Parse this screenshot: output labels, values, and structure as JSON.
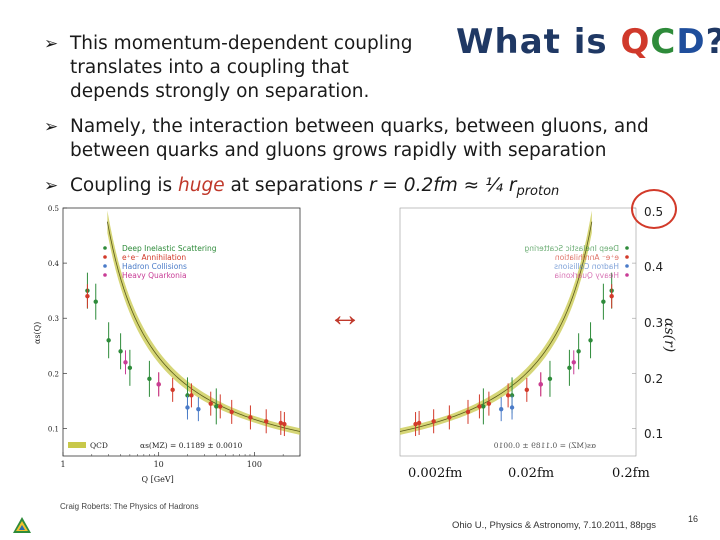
{
  "slide": {
    "title_prefix": "What is ",
    "title_q": "Q",
    "title_c": "C",
    "title_d": "D",
    "title_suffix": "?",
    "bullets": [
      {
        "line1": "This momentum-dependent coupling",
        "line2": "translates into a coupling that",
        "line3": "depends strongly on separation."
      },
      {
        "line1": "Namely, the interaction between quarks, between gluons, and",
        "line2": "between quarks and gluons grows rapidly with separation"
      },
      {
        "part1": "Coupling is ",
        "huge": "huge",
        "part2": " at separations ",
        "formula": "r = 0.2fm ≈ ¼ r",
        "subscript": "proton"
      }
    ],
    "arrow_symbol": "↔",
    "footer_left": "Craig Roberts: The Physics of Hadrons",
    "footer_right": "Ohio U., Physics & Astronomy, 7.10.2011, 88pgs",
    "page_number": "16"
  },
  "chart_data": [
    {
      "type": "scatter",
      "title": "",
      "xlabel": "Q [GeV]",
      "ylabel": "αs(Q)",
      "x_scale": "log",
      "xlim": [
        1,
        300
      ],
      "ylim": [
        0.05,
        0.5
      ],
      "y_ticks": [
        "0.1",
        "0.2",
        "0.3",
        "0.4",
        "0.5"
      ],
      "x_ticks": [
        "1",
        "10",
        "100"
      ],
      "legend": {
        "placement": "top-left",
        "entries": [
          "Deep Inelastic Scattering",
          "e⁺e⁻ Annihilation",
          "Hadron Collisions",
          "Heavy Quarkonia"
        ]
      },
      "band_legend": {
        "label": "QCD",
        "formula": "αs(MZ) = 0.1189 ± 0.0010"
      },
      "series": [
        {
          "name": "Deep Inelastic Scattering",
          "color": "#2e8b3a",
          "x": [
            1.8,
            2.2,
            3.0,
            4.0,
            5.0,
            8.0,
            20,
            40
          ],
          "y": [
            0.35,
            0.33,
            0.26,
            0.24,
            0.21,
            0.19,
            0.16,
            0.14
          ]
        },
        {
          "name": "e⁺e⁻ Annihilation",
          "color": "#d23a2a",
          "x": [
            1.8,
            10,
            14,
            22,
            35,
            44,
            58,
            91,
            133,
            189,
            206
          ],
          "y": [
            0.34,
            0.18,
            0.17,
            0.16,
            0.145,
            0.14,
            0.13,
            0.12,
            0.113,
            0.11,
            0.108
          ]
        },
        {
          "name": "Hadron Collisions",
          "color": "#4a7bc8",
          "x": [
            20,
            26
          ],
          "y": [
            0.138,
            0.135
          ]
        },
        {
          "name": "Heavy Quarkonia",
          "color": "#c83c96",
          "x": [
            4.5,
            10
          ],
          "y": [
            0.22,
            0.18
          ]
        }
      ]
    },
    {
      "type": "scatter",
      "title": "",
      "xlabel": "",
      "ylabel": "αs(r)",
      "xlim": [
        "0.002fm",
        "0.2fm"
      ],
      "ylim": [
        0.05,
        0.5
      ],
      "x_ticks": [
        "0.002fm",
        "0.02fm",
        "0.2fm"
      ],
      "y_ticks": [
        "0.1",
        "0.2",
        "0.3",
        "0.4",
        "0.5"
      ],
      "mirrored": true
    }
  ],
  "colors": {
    "title_blue": "#1f3864",
    "title_q": "#d0392b",
    "title_c": "#2e8b3a",
    "title_d": "#1f4e9c",
    "accent_red": "#c0392b",
    "band": "#c8c84a"
  }
}
